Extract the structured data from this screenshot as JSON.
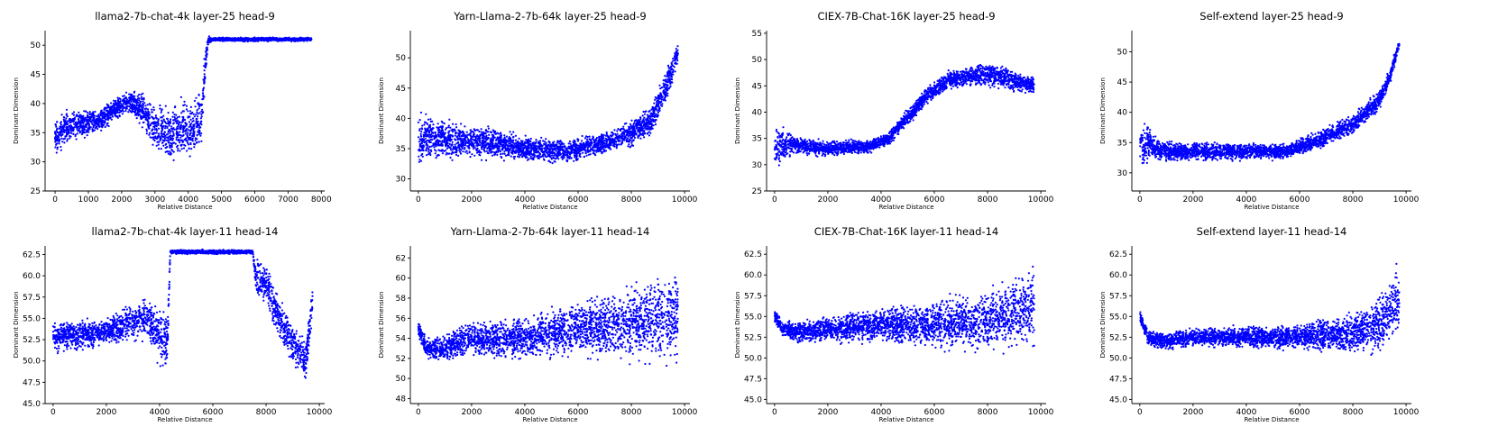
{
  "figure": {
    "point_color": "#0000ff",
    "axis_color": "#000000"
  },
  "chart_data": [
    {
      "type": "scatter",
      "title": "llama2-7b-chat-4k layer-25 head-9",
      "xlabel": "Relative Distance",
      "ylabel": "Dominant Dimension",
      "xlim": [
        -300,
        8100
      ],
      "ylim": [
        25,
        52.5
      ],
      "xticks": [
        0,
        1000,
        2000,
        3000,
        4000,
        5000,
        6000,
        7000,
        8000
      ],
      "yticks": [
        25,
        30,
        35,
        40,
        45,
        50
      ],
      "series": [
        {
          "name": "dominant dimension",
          "color": "#0000ff",
          "x_range": [
            0,
            7700
          ],
          "trend": [
            [
              0,
              34
            ],
            [
              300,
              36
            ],
            [
              800,
              36.5
            ],
            [
              1300,
              37
            ],
            [
              1800,
              39
            ],
            [
              2200,
              40.5
            ],
            [
              2600,
              39
            ],
            [
              3000,
              36
            ],
            [
              3400,
              34.5
            ],
            [
              3800,
              36
            ],
            [
              4100,
              35
            ],
            [
              4400,
              38
            ],
            [
              4500,
              46
            ],
            [
              4600,
              51
            ],
            [
              5000,
              51
            ],
            [
              7700,
              51
            ]
          ],
          "spread": [
            [
              0,
              4
            ],
            [
              1000,
              3
            ],
            [
              2000,
              2
            ],
            [
              2800,
              4
            ],
            [
              3500,
              6
            ],
            [
              4400,
              6
            ],
            [
              4550,
              2
            ],
            [
              4700,
              0.4
            ],
            [
              7700,
              0.4
            ]
          ]
        }
      ]
    },
    {
      "type": "scatter",
      "title": "Yarn-Llama-2-7b-64k layer-25 head-9",
      "xlabel": "Relative Distance",
      "ylabel": "Dominant Dimension",
      "xlim": [
        -300,
        10200
      ],
      "ylim": [
        28,
        54.5
      ],
      "xticks": [
        0,
        2000,
        4000,
        6000,
        8000,
        10000
      ],
      "yticks": [
        30,
        35,
        40,
        45,
        50
      ],
      "series": [
        {
          "name": "dominant dimension",
          "color": "#0000ff",
          "x_range": [
            0,
            9750
          ],
          "trend": [
            [
              0,
              36
            ],
            [
              300,
              37
            ],
            [
              1000,
              36.5
            ],
            [
              2500,
              36
            ],
            [
              4000,
              35
            ],
            [
              5500,
              34.5
            ],
            [
              7000,
              36
            ],
            [
              8000,
              37.5
            ],
            [
              8800,
              40
            ],
            [
              9300,
              45
            ],
            [
              9750,
              51
            ]
          ],
          "spread": [
            [
              0,
              5
            ],
            [
              1500,
              3.5
            ],
            [
              4000,
              2.5
            ],
            [
              7000,
              2.2
            ],
            [
              8800,
              3
            ],
            [
              9400,
              3.5
            ],
            [
              9750,
              2
            ]
          ]
        }
      ]
    },
    {
      "type": "scatter",
      "title": "CIEX-7B-Chat-16K layer-25 head-9",
      "xlabel": "Relative Distance",
      "ylabel": "Dominant Dimension",
      "xlim": [
        -300,
        10200
      ],
      "ylim": [
        25,
        55.5
      ],
      "xticks": [
        0,
        2000,
        4000,
        6000,
        8000,
        10000
      ],
      "yticks": [
        25,
        30,
        35,
        40,
        45,
        50,
        55
      ],
      "series": [
        {
          "name": "dominant dimension",
          "color": "#0000ff",
          "x_range": [
            0,
            9750
          ],
          "trend": [
            [
              0,
              33
            ],
            [
              500,
              34
            ],
            [
              1000,
              33.5
            ],
            [
              2000,
              33
            ],
            [
              3500,
              33.5
            ],
            [
              4300,
              35
            ],
            [
              5000,
              39
            ],
            [
              5700,
              43
            ],
            [
              6500,
              46
            ],
            [
              7500,
              47
            ],
            [
              8300,
              47
            ],
            [
              9000,
              46
            ],
            [
              9750,
              45
            ]
          ],
          "spread": [
            [
              0,
              5
            ],
            [
              800,
              2
            ],
            [
              4000,
              1.5
            ],
            [
              5000,
              2
            ],
            [
              7000,
              2
            ],
            [
              8300,
              3
            ],
            [
              9750,
              2
            ]
          ]
        }
      ]
    },
    {
      "type": "scatter",
      "title": "Self-extend layer-25 head-9",
      "xlabel": "Relative Distance",
      "ylabel": "Dominant Dimension",
      "xlim": [
        -300,
        10200
      ],
      "ylim": [
        27,
        53.5
      ],
      "xticks": [
        0,
        2000,
        4000,
        6000,
        8000,
        10000
      ],
      "yticks": [
        30,
        35,
        40,
        45,
        50
      ],
      "series": [
        {
          "name": "dominant dimension",
          "color": "#0000ff",
          "x_range": [
            0,
            9750
          ],
          "trend": [
            [
              0,
              34
            ],
            [
              300,
              35
            ],
            [
              800,
              33.5
            ],
            [
              3000,
              33.5
            ],
            [
              5500,
              33.5
            ],
            [
              6500,
              35
            ],
            [
              8000,
              38
            ],
            [
              9000,
              42
            ],
            [
              9400,
              46
            ],
            [
              9750,
              51.5
            ]
          ],
          "spread": [
            [
              0,
              5
            ],
            [
              700,
              2
            ],
            [
              5500,
              1.5
            ],
            [
              7000,
              2
            ],
            [
              9000,
              2
            ],
            [
              9750,
              1
            ]
          ]
        }
      ]
    },
    {
      "type": "scatter",
      "title": "llama2-7b-chat-4k layer-11 head-14",
      "xlabel": "Relative Distance",
      "ylabel": "Dominant Dimension",
      "xlim": [
        -300,
        10200
      ],
      "ylim": [
        45,
        63.5
      ],
      "xticks": [
        0,
        2000,
        4000,
        6000,
        8000,
        10000
      ],
      "yticks": [
        45.0,
        47.5,
        50.0,
        52.5,
        55.0,
        57.5,
        60.0,
        62.5
      ],
      "series": [
        {
          "name": "dominant dimension",
          "color": "#0000ff",
          "x_range": [
            0,
            9750
          ],
          "trend": [
            [
              0,
              53
            ],
            [
              1000,
              53
            ],
            [
              2000,
              53.5
            ],
            [
              3000,
              54.5
            ],
            [
              3500,
              55
            ],
            [
              4000,
              53
            ],
            [
              4300,
              52
            ],
            [
              4400,
              62.8
            ],
            [
              7500,
              62.8
            ],
            [
              7600,
              60
            ],
            [
              8000,
              59
            ],
            [
              8500,
              55
            ],
            [
              9000,
              52
            ],
            [
              9500,
              50
            ],
            [
              9750,
              57
            ]
          ],
          "spread": [
            [
              0,
              2.5
            ],
            [
              2000,
              2
            ],
            [
              3500,
              3
            ],
            [
              4200,
              5
            ],
            [
              4400,
              0.3
            ],
            [
              7500,
              0.3
            ],
            [
              7700,
              3
            ],
            [
              8500,
              3
            ],
            [
              9750,
              3
            ]
          ]
        }
      ]
    },
    {
      "type": "scatter",
      "title": "Yarn-Llama-2-7b-64k layer-11 head-14",
      "xlabel": "Relative Distance",
      "ylabel": "Dominant Dimension",
      "xlim": [
        -300,
        10200
      ],
      "ylim": [
        47.5,
        63.2
      ],
      "xticks": [
        0,
        2000,
        4000,
        6000,
        8000,
        10000
      ],
      "yticks": [
        48,
        50,
        52,
        54,
        56,
        58,
        60,
        62
      ],
      "series": [
        {
          "name": "dominant dimension",
          "color": "#0000ff",
          "x_range": [
            0,
            9750
          ],
          "trend": [
            [
              0,
              55
            ],
            [
              300,
              53
            ],
            [
              1000,
              53
            ],
            [
              2000,
              54
            ],
            [
              4000,
              54
            ],
            [
              6000,
              55
            ],
            [
              8000,
              55.5
            ],
            [
              9750,
              56
            ]
          ],
          "spread": [
            [
              0,
              1
            ],
            [
              800,
              1.5
            ],
            [
              2000,
              2
            ],
            [
              4000,
              2.5
            ],
            [
              6000,
              3.5
            ],
            [
              8000,
              4.5
            ],
            [
              9750,
              5.5
            ]
          ]
        }
      ]
    },
    {
      "type": "scatter",
      "title": "CIEX-7B-Chat-16K layer-11 head-14",
      "xlabel": "Relative Distance",
      "ylabel": "Dominant Dimension",
      "xlim": [
        -300,
        10200
      ],
      "ylim": [
        44.5,
        63.5
      ],
      "xticks": [
        0,
        2000,
        4000,
        6000,
        8000,
        10000
      ],
      "yticks": [
        45.0,
        47.5,
        50.0,
        52.5,
        55.0,
        57.5,
        60.0,
        62.5
      ],
      "series": [
        {
          "name": "dominant dimension",
          "color": "#0000ff",
          "x_range": [
            0,
            9750
          ],
          "trend": [
            [
              0,
              55
            ],
            [
              300,
              53.5
            ],
            [
              1000,
              53
            ],
            [
              2000,
              53.5
            ],
            [
              4000,
              54
            ],
            [
              6000,
              54
            ],
            [
              8000,
              54.5
            ],
            [
              9750,
              56
            ]
          ],
          "spread": [
            [
              0,
              1
            ],
            [
              800,
              1.5
            ],
            [
              2000,
              2
            ],
            [
              4000,
              2.5
            ],
            [
              6000,
              3.5
            ],
            [
              8000,
              4.5
            ],
            [
              9750,
              6
            ]
          ]
        }
      ]
    },
    {
      "type": "scatter",
      "title": "Self-extend layer-11 head-14",
      "xlabel": "Relative Distance",
      "ylabel": "Dominant Dimension",
      "xlim": [
        -300,
        10200
      ],
      "ylim": [
        44.5,
        63.5
      ],
      "xticks": [
        0,
        2000,
        4000,
        6000,
        8000,
        10000
      ],
      "yticks": [
        45.0,
        47.5,
        50.0,
        52.5,
        55.0,
        57.5,
        60.0,
        62.5
      ],
      "series": [
        {
          "name": "dominant dimension",
          "color": "#0000ff",
          "x_range": [
            0,
            9750
          ],
          "trend": [
            [
              0,
              55
            ],
            [
              300,
              52.5
            ],
            [
              1000,
              52
            ],
            [
              2000,
              52.5
            ],
            [
              4000,
              52.5
            ],
            [
              6000,
              52.5
            ],
            [
              8000,
              53
            ],
            [
              9000,
              54
            ],
            [
              9750,
              57
            ]
          ],
          "spread": [
            [
              0,
              1
            ],
            [
              800,
              1.2
            ],
            [
              3000,
              1.5
            ],
            [
              6000,
              2
            ],
            [
              8000,
              3
            ],
            [
              9000,
              4
            ],
            [
              9750,
              5
            ]
          ]
        }
      ]
    }
  ]
}
